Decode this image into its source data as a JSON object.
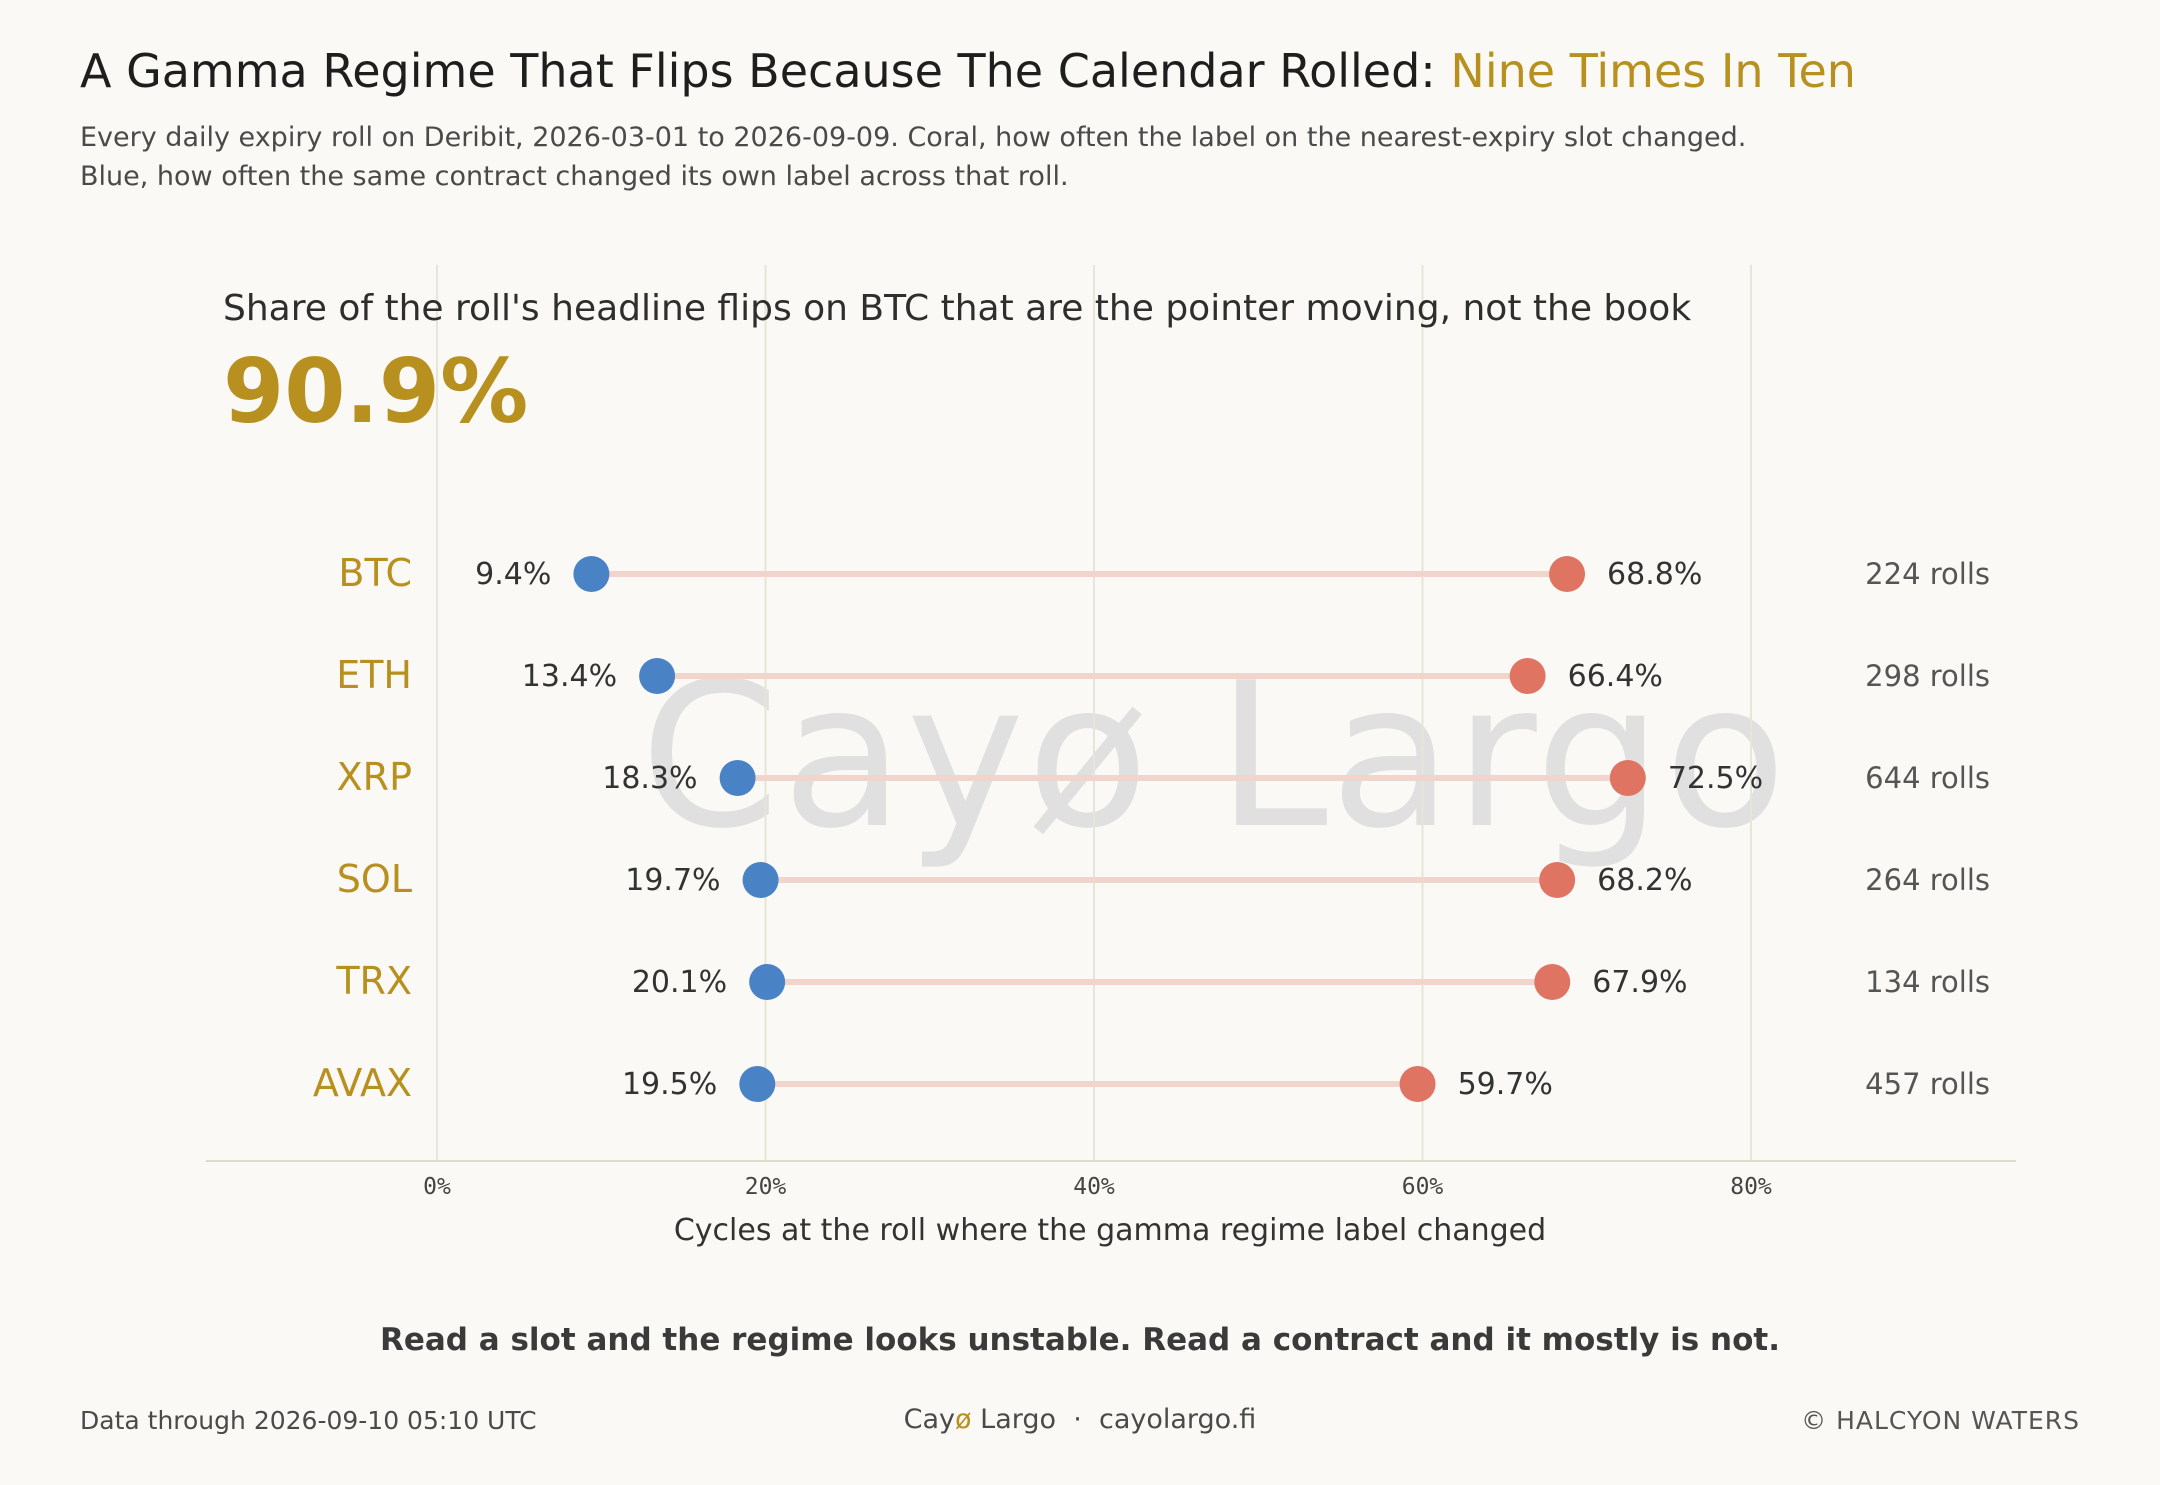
{
  "header": {
    "title_main": "A Gamma Regime That Flips Because The Calendar Rolled: ",
    "title_accent": "Nine Times In Ten",
    "subtitle_line1": "Every daily expiry roll on Deribit, 2026-03-01 to 2026-09-09. Coral, how often the label on the nearest-expiry slot changed.",
    "subtitle_line2": "Blue, how often the same contract changed its own label across that roll."
  },
  "kpi": {
    "label": "Share of the roll's headline flips on BTC that are the pointer moving, not the book",
    "value": "90.9%"
  },
  "watermark": "Cayø Largo",
  "chart_data": {
    "type": "dumbbell",
    "categories": [
      "BTC",
      "ETH",
      "XRP",
      "SOL",
      "TRX",
      "AVAX"
    ],
    "series": [
      {
        "values": [
          9.4,
          13.4,
          18.3,
          19.7,
          20.1,
          19.5
        ],
        "labels": [
          "9.4%",
          "13.4%",
          "18.3%",
          "19.7%",
          "20.1%",
          "19.5%"
        ],
        "color": "#4a82c6"
      },
      {
        "values": [
          68.8,
          66.4,
          72.5,
          68.2,
          67.9,
          59.7
        ],
        "labels": [
          "68.8%",
          "66.4%",
          "72.5%",
          "68.2%",
          "67.9%",
          "59.7%"
        ],
        "color": "#e07462"
      }
    ],
    "roll_counts": [
      "224 rolls",
      "298 rolls",
      "644 rolls",
      "264 rolls",
      "134 rolls",
      "457 rolls"
    ],
    "xlabel": "Cycles at the roll where the gamma regime label changed",
    "xlim": [
      0,
      80
    ],
    "xticks": [
      "0%",
      "20%",
      "40%",
      "60%",
      "80%"
    ],
    "grid": true,
    "connector_color": "#f1d4cc",
    "category_color": "#b8901f"
  },
  "takeaway": "Read a slot and the regime looks unstable. Read a contract and it mostly is not.",
  "footer": {
    "data_through": "Data through 2026-09-10 05:10 UTC",
    "brand_pre": "Cay",
    "brand_o": "ø",
    "brand_post": " Largo",
    "separator": "·",
    "site": "cayolargo.fi",
    "copyright": "© HALCYON WATERS"
  }
}
